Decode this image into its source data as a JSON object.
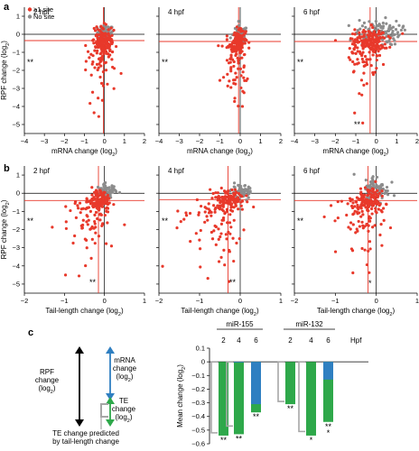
{
  "panels": [
    {
      "letter": "a",
      "chart_data": [
        {
          "type": "scatter",
          "condition": "2 hpf",
          "xlabel": "mRNA change (log2)",
          "ylabel": "RPF change (log2)",
          "xlim": [
            -4,
            2
          ],
          "ylim": [
            -5.5,
            1.5
          ],
          "x_ticks": [
            -4,
            -3,
            -2,
            -1,
            0,
            1,
            2
          ],
          "y_ticks": [
            -5,
            -4,
            -3,
            -2,
            -1,
            0,
            1
          ],
          "annotations": [
            "**"
          ],
          "legend": {
            "position": "top-left",
            "entries": [
              {
                "label": "≥1 site",
                "color": "#e8392b"
              },
              {
                "label": "No site",
                "color": "#8c8c8c"
              }
            ]
          }
        },
        {
          "type": "scatter",
          "condition": "4 hpf",
          "xlabel": "mRNA change (log2)",
          "xlim": [
            -4,
            2
          ],
          "ylim": [
            -5.5,
            1.5
          ],
          "x_ticks": [
            -4,
            -3,
            -2,
            -1,
            0,
            1,
            2
          ],
          "annotations": [
            "**"
          ]
        },
        {
          "type": "scatter",
          "condition": "6 hpf",
          "xlabel": "mRNA change (log2)",
          "xlim": [
            -4,
            2
          ],
          "ylim": [
            -5.5,
            1.5
          ],
          "x_ticks": [
            -4,
            -3,
            -2,
            -1,
            0,
            1,
            2
          ],
          "annotations": [
            "**",
            "**"
          ]
        }
      ]
    },
    {
      "letter": "b",
      "chart_data": [
        {
          "type": "scatter",
          "condition": "2 hpf",
          "xlabel": "Tail-length change (log2)",
          "ylabel": "RPF change (log2)",
          "xlim": [
            -2,
            1
          ],
          "ylim": [
            -5.5,
            1.5
          ],
          "x_ticks": [
            -2,
            -1,
            0,
            1
          ],
          "y_ticks": [
            -5,
            -4,
            -3,
            -2,
            -1,
            0,
            1
          ],
          "annotations": [
            "**",
            "**"
          ]
        },
        {
          "type": "scatter",
          "condition": "4 hpf",
          "xlabel": "Tail-length change (log2)",
          "xlim": [
            -2,
            1
          ],
          "ylim": [
            -5.5,
            1.5
          ],
          "x_ticks": [
            -2,
            -1,
            0,
            1
          ],
          "annotations": [
            "**",
            "**"
          ]
        },
        {
          "type": "scatter",
          "condition": "6 hpf",
          "xlabel": "Tail-length change (log2)",
          "xlim": [
            -2,
            1
          ],
          "ylim": [
            -5.5,
            1.5
          ],
          "x_ticks": [
            -2,
            -1,
            0,
            1
          ],
          "annotations": [
            "**",
            "*"
          ]
        }
      ]
    },
    {
      "letter": "c",
      "schematic": {
        "rpf_line1": "RPF",
        "rpf_line2": "change",
        "rpf_line3": "(log2)",
        "mrna_line1": "mRNA",
        "mrna_line2": "change",
        "mrna_line3": "(log2)",
        "te_line1": "TE",
        "te_line2": "change",
        "te_line3": "(log2)",
        "pred_line1": "TE change predicted",
        "pred_line2": "by tail-length change",
        "colors": {
          "mrna": "#2f7fc1",
          "te": "#2ea84a",
          "predicted": "#a6a6a6",
          "rpf": "#000000"
        }
      },
      "chart_data": {
        "type": "bar",
        "ylabel": "Mean change (log2)",
        "x_unit": "Hpf",
        "ylim": [
          -0.6,
          0.1
        ],
        "y_ticks": [
          0.1,
          0,
          -0.1,
          -0.2,
          -0.3,
          -0.4,
          -0.5,
          -0.6
        ],
        "groups": [
          {
            "name": "miR-155",
            "hpf": [
              "2",
              "4",
              "6"
            ],
            "rpf": [
              -0.54,
              -0.53,
              -0.37
            ],
            "te": [
              -0.54,
              -0.53,
              -0.37
            ],
            "mrna": [
              0.0,
              -0.005,
              -0.31
            ],
            "tail_predicted": [
              -0.52,
              -0.47,
              null
            ],
            "significance": [
              "**",
              "**",
              "**"
            ]
          },
          {
            "name": "miR-132",
            "hpf": [
              "2",
              "4",
              "6"
            ],
            "rpf": [
              -0.31,
              -0.54,
              -0.57
            ],
            "te": [
              -0.31,
              -0.54,
              -0.44
            ],
            "mrna": [
              0.0,
              0.0,
              -0.13
            ],
            "tail_predicted": [
              -0.29,
              -0.51,
              null
            ],
            "significance": [
              "**",
              "*",
              "**\n*"
            ]
          }
        ]
      }
    }
  ]
}
